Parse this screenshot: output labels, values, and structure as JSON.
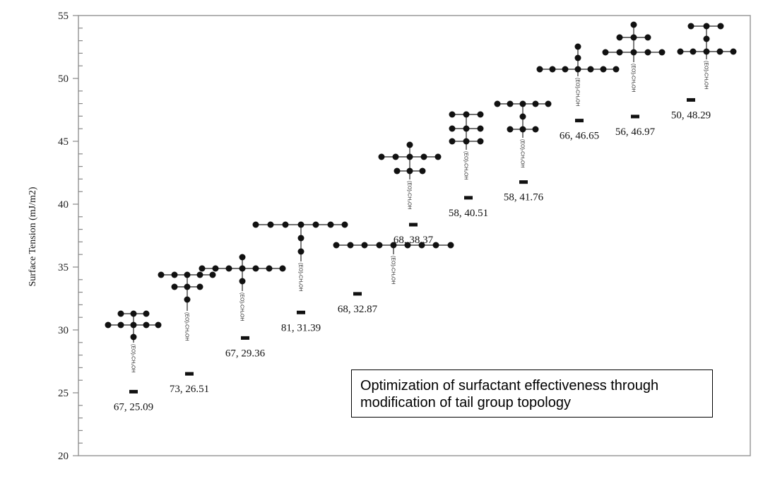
{
  "chart_data": {
    "type": "scatter",
    "title": "",
    "xlabel": "",
    "ylabel": "Surface Tension (mJ/m2)",
    "ylim": [
      20,
      55
    ],
    "yticks": [
      20,
      25,
      30,
      35,
      40,
      45,
      50,
      55
    ],
    "grid": false,
    "points": [
      {
        "label": "67, 25.09",
        "x": 67,
        "y": 25.09
      },
      {
        "label": "73, 26.51",
        "x": 73,
        "y": 26.51
      },
      {
        "label": "67, 29.36",
        "x": 67,
        "y": 29.36
      },
      {
        "label": "81, 31.39",
        "x": 81,
        "y": 31.39
      },
      {
        "label": "68, 32.87",
        "x": 68,
        "y": 32.87
      },
      {
        "label": "68, 38.37",
        "x": 68,
        "y": 38.37
      },
      {
        "label": "58, 40.51",
        "x": 58,
        "y": 40.51
      },
      {
        "label": "58, 41.76",
        "x": 58,
        "y": 41.76
      },
      {
        "label": "66, 46.65",
        "x": 66,
        "y": 46.65
      },
      {
        "label": "56, 46.97",
        "x": 56,
        "y": 46.97
      },
      {
        "label": "50, 48.29",
        "x": 50,
        "y": 48.29
      }
    ],
    "headgroup_label": "(EO)₇CH₂OH",
    "annotation": "Optimization of surfactant effectiveness through modification of tail group topology"
  }
}
